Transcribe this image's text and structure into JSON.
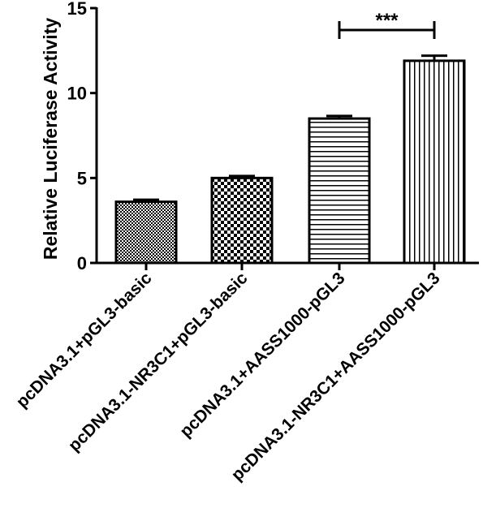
{
  "chart_data": {
    "type": "bar",
    "title": "",
    "xlabel": "",
    "ylabel": "Relative Luciferase Activity",
    "ylim": [
      0,
      15
    ],
    "yticks": [
      0,
      5,
      10,
      15
    ],
    "grid": false,
    "categories": [
      "pcDNA3.1+pGL3-basic",
      "pcDNA3.1-NR3C1+pGL3-basic",
      "pcDNA3.1+AASS1000-pGL3",
      "pcDNA3.1-NR3C1+AASS1000-pGL3"
    ],
    "values": [
      3.6,
      5.0,
      8.5,
      11.9
    ],
    "errors": [
      0.12,
      0.12,
      0.15,
      0.3
    ],
    "fill_patterns": [
      "fine-checker",
      "checker",
      "horizontal-lines",
      "vertical-lines"
    ],
    "bar_color": "#000000",
    "significance": [
      {
        "from": 2,
        "to": 3,
        "label": "***"
      }
    ]
  }
}
